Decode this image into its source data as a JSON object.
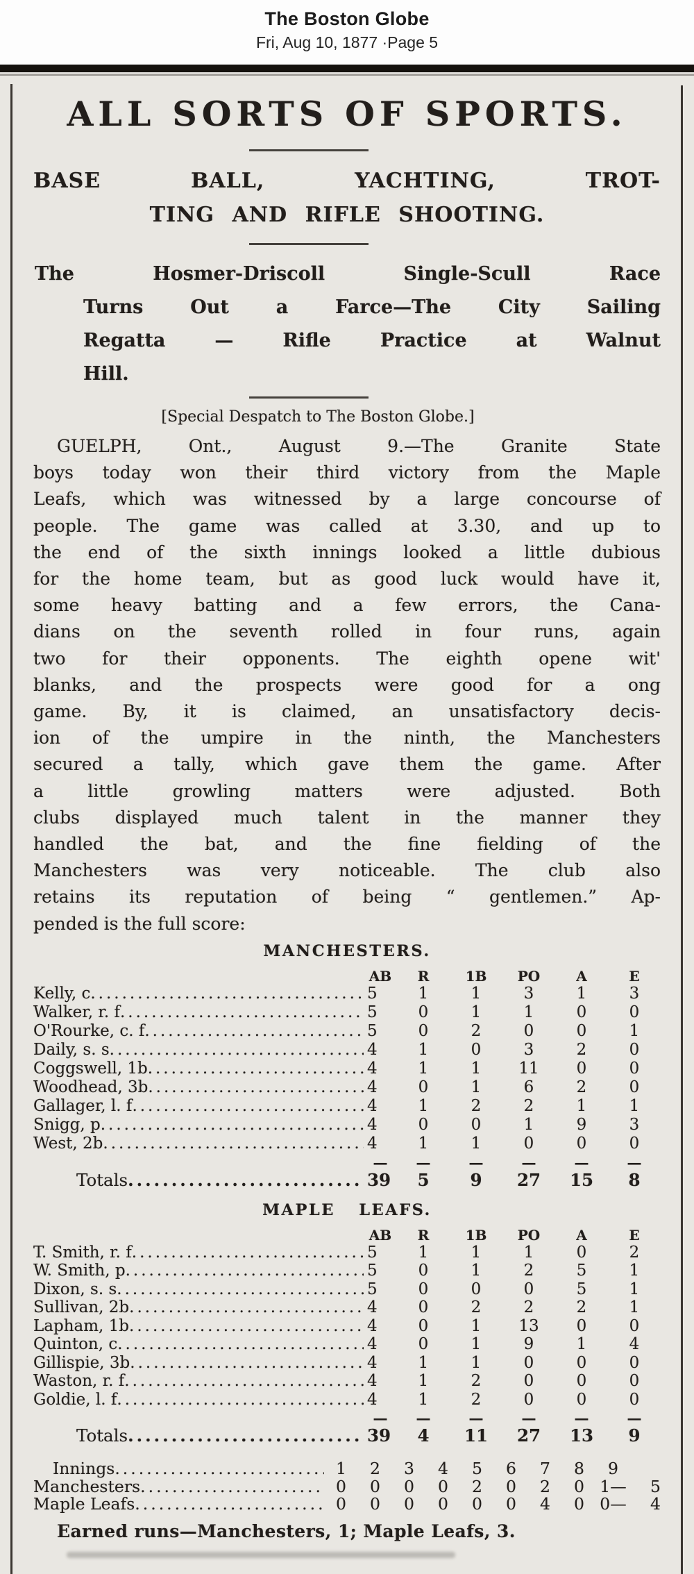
{
  "theme": {
    "paper": "#e9e7e2",
    "ink": "#221e1b",
    "viewer_bg": "#fdfdfd",
    "top_bar": "#15120e"
  },
  "viewer": {
    "masthead": "The Boston Globe",
    "date_page_line": "Fri, Aug 10, 1877 ·Page 5"
  },
  "article": {
    "headline": "ALL SORTS OF SPORTS.",
    "subheadline_lines": [
      "BASE BALL, YACHTING, TROT-",
      "TING AND RIFLE SHOOTING."
    ],
    "deck_lines": [
      "The Hosmer-Driscoll Single-Scull Race",
      "Turns Out a Farce—The City Sailing",
      "Regatta — Rifle Practice at Walnut",
      "Hill."
    ],
    "credit_line": "[Special Despatch to The Boston Globe.]",
    "body_lines": [
      "GUELPH, Ont., August 9.—The Granite State",
      "boys today won their third victory from the Maple",
      "Leafs, which was witnessed by a large concourse of",
      "people.  The game was called at 3.30, and up to",
      "the end of the sixth innings looked a little dubious",
      "for the home team, but as good luck would have it,",
      "some heavy batting and a few errors, the Cana-",
      "dians on the seventh rolled in four runs, again",
      "two for their opponents.  The eighth opene  wit'",
      "blanks, and the prospects were good for a  ong",
      "game.  By, it is claimed, an unsatisfactory decis-",
      "ion of the umpire in the ninth, the Manchesters",
      "secured a tally, which gave them the game.  After",
      "a little growling matters were adjusted.  Both",
      "clubs displayed much talent in the manner they",
      "handled the bat, and the fine fielding of the",
      "Manchesters was very noticeable.  The club also",
      "retains its reputation of being “ gentlemen.”  Ap-",
      "pended is the full score:"
    ]
  },
  "box_score": {
    "columns": [
      "AB",
      "R",
      "1B",
      "PO",
      "A",
      "E"
    ],
    "teams": [
      {
        "title": "MANCHESTERS.",
        "players": [
          {
            "name": "Kelly, c",
            "stats": [
              "5",
              "1",
              "1",
              "3",
              "1",
              "3"
            ]
          },
          {
            "name": "Walker, r. f",
            "stats": [
              "5",
              "0",
              "1",
              "1",
              "0",
              "0"
            ]
          },
          {
            "name": "O'Rourke, c. f",
            "stats": [
              "5",
              "0",
              "2",
              "0",
              "0",
              "1"
            ]
          },
          {
            "name": "Daily, s. s",
            "stats": [
              "4",
              "1",
              "0",
              "3",
              "2",
              "0"
            ]
          },
          {
            "name": "Coggswell, 1b",
            "stats": [
              "4",
              "1",
              "1",
              "11",
              "0",
              "0"
            ]
          },
          {
            "name": "Woodhead, 3b",
            "stats": [
              "4",
              "0",
              "1",
              "6",
              "2",
              "0"
            ]
          },
          {
            "name": "Gallager, l. f",
            "stats": [
              "4",
              "1",
              "2",
              "2",
              "1",
              "1"
            ]
          },
          {
            "name": "Snigg, p",
            "stats": [
              "4",
              "0",
              "0",
              "1",
              "9",
              "3"
            ]
          },
          {
            "name": "West, 2b",
            "stats": [
              "4",
              "1",
              "1",
              "0",
              "0",
              "0"
            ]
          }
        ],
        "totals_label": "Totals",
        "totals": [
          "39",
          "5",
          "9",
          "27",
          "15",
          "8"
        ]
      },
      {
        "title": "MAPLE LEAFS.",
        "players": [
          {
            "name": "T. Smith, r. f",
            "stats": [
              "5",
              "1",
              "1",
              "1",
              "0",
              "2"
            ]
          },
          {
            "name": "W. Smith, p",
            "stats": [
              "5",
              "0",
              "1",
              "2",
              "5",
              "1"
            ]
          },
          {
            "name": "Dixon, s. s",
            "stats": [
              "5",
              "0",
              "0",
              "0",
              "5",
              "1"
            ]
          },
          {
            "name": "Sullivan, 2b",
            "stats": [
              "4",
              "0",
              "2",
              "2",
              "2",
              "1"
            ]
          },
          {
            "name": "Lapham, 1b",
            "stats": [
              "4",
              "0",
              "1",
              "13",
              "0",
              "0"
            ]
          },
          {
            "name": "Quinton, c",
            "stats": [
              "4",
              "0",
              "1",
              "9",
              "1",
              "4"
            ]
          },
          {
            "name": "Gillispie, 3b",
            "stats": [
              "4",
              "1",
              "1",
              "0",
              "0",
              "0"
            ]
          },
          {
            "name": "Waston, r. f",
            "stats": [
              "4",
              "1",
              "2",
              "0",
              "0",
              "0"
            ]
          },
          {
            "name": "Goldie, l. f",
            "stats": [
              "4",
              "1",
              "2",
              "0",
              "0",
              "0"
            ]
          }
        ],
        "totals_label": "Totals",
        "totals": [
          "39",
          "4",
          "11",
          "27",
          "13",
          "9"
        ]
      }
    ],
    "line_score": {
      "innings_label": "Innings",
      "inning_numbers": [
        "1",
        "2",
        "3",
        "4",
        "5",
        "6",
        "7",
        "8",
        "9"
      ],
      "separator": "—",
      "rows": [
        {
          "team": "Manchesters",
          "by_inning": [
            "0",
            "0",
            "0",
            "0",
            "2",
            "0",
            "2",
            "0",
            "1"
          ],
          "total": "5"
        },
        {
          "team": "Maple Leafs",
          "by_inning": [
            "0",
            "0",
            "0",
            "0",
            "0",
            "0",
            "4",
            "0",
            "0"
          ],
          "total": "4"
        }
      ]
    },
    "earned_runs_line": "Earned runs—Manchesters, 1; Maple Leafs, 3."
  }
}
